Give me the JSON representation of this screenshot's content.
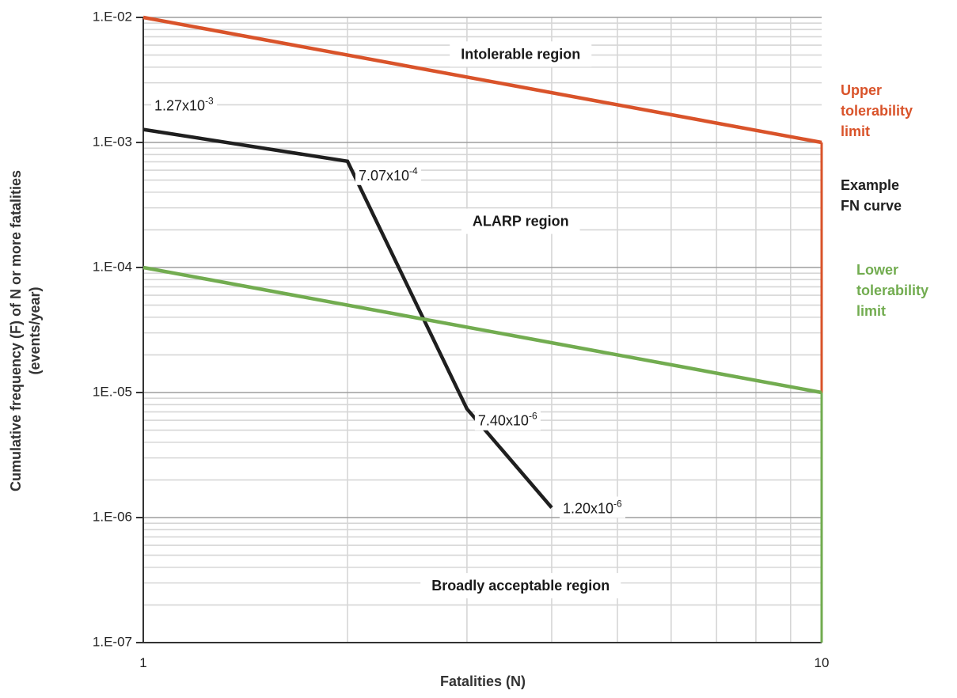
{
  "chart_data": {
    "type": "line",
    "xlabel": "Fatalities (N)",
    "ylabel_line1": "Cumulative frequency (F) of N or more fatalities",
    "ylabel_line2": "(events/year)",
    "x_scale": "log",
    "y_scale": "log",
    "xlim": [
      1,
      10
    ],
    "ylim": [
      1e-07,
      0.01
    ],
    "grid": true,
    "x_ticks": [
      {
        "value": 1,
        "label": "1"
      },
      {
        "value": 10,
        "label": "10"
      }
    ],
    "y_ticks": [
      {
        "value": 0.01,
        "label": "1.E-02"
      },
      {
        "value": 0.001,
        "label": "1.E-03"
      },
      {
        "value": 0.0001,
        "label": "1.E-04"
      },
      {
        "value": 1e-05,
        "label": "1E.-05"
      },
      {
        "value": 1e-06,
        "label": "1.E-06"
      },
      {
        "value": 1e-07,
        "label": "1.E-07"
      }
    ],
    "series": [
      {
        "name": "Upper tolerability limit",
        "color": "#d9532a",
        "x": [
          1,
          10
        ],
        "y": [
          0.01,
          0.001
        ]
      },
      {
        "name": "Example FN curve",
        "color": "#1f1f1f",
        "x": [
          1,
          2,
          3,
          4
        ],
        "y": [
          0.00127,
          0.000707,
          7.4e-06,
          1.2e-06
        ]
      },
      {
        "name": "Lower tolerability limit",
        "color": "#72ac50",
        "x": [
          1,
          10
        ],
        "y": [
          0.0001,
          1e-05
        ]
      }
    ],
    "point_labels": [
      {
        "x": 1,
        "y": 0.00127,
        "mantissa": "1.27x10",
        "exp": "-3"
      },
      {
        "x": 2,
        "y": 0.000707,
        "mantissa": "7.07x10",
        "exp": "-4"
      },
      {
        "x": 3,
        "y": 7.4e-06,
        "mantissa": "7.40x10",
        "exp": "-6"
      },
      {
        "x": 4,
        "y": 1.2e-06,
        "mantissa": "1.20x10",
        "exp": "-6"
      }
    ],
    "regions": [
      {
        "key": "intolerable",
        "label": "Intolerable region",
        "x": 3.6,
        "y": 0.005
      },
      {
        "key": "alarp",
        "label": "ALARP region",
        "x": 3.6,
        "y": 0.00023
      },
      {
        "key": "broadly",
        "label": "Broadly acceptable region",
        "x": 3.6,
        "y": 2.8e-07
      }
    ],
    "legend": [
      {
        "key": "upper",
        "lines": [
          "Upper",
          "tolerability",
          "limit"
        ],
        "color": "#d9532a"
      },
      {
        "key": "example",
        "lines": [
          "Example",
          "FN curve"
        ],
        "color": "#1f1f1f"
      },
      {
        "key": "lower",
        "lines": [
          "Lower",
          "tolerability",
          "limit"
        ],
        "color": "#72ac50"
      }
    ],
    "legend_placement": "right"
  }
}
